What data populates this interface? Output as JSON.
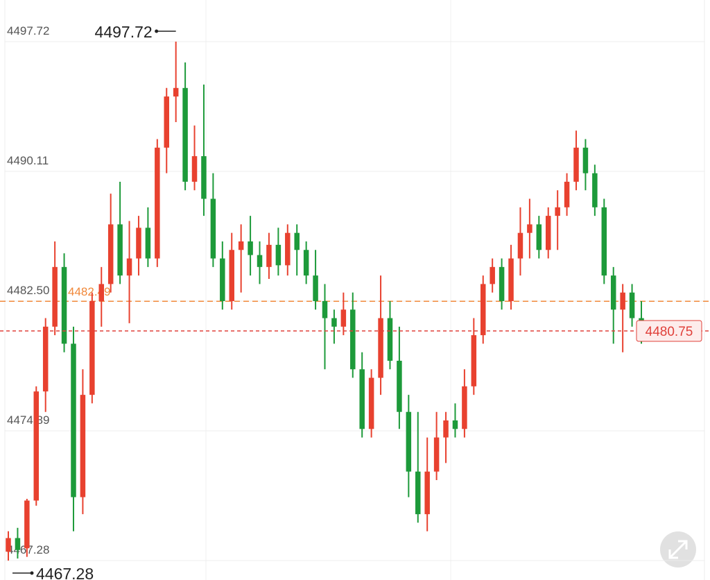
{
  "chart_data": {
    "type": "candlestick",
    "up_color": "#e8412f",
    "down_color": "#1d9a3a",
    "ylim": [
      4466.14,
      4500.16
    ],
    "yticks": [
      4467.28,
      4474.89,
      {
        "value": 4482.5,
        "label": "4482.50"
      },
      4490.11,
      4497.72
    ],
    "grid": true,
    "reference_line": {
      "value": 4482.49,
      "color": "#f0883a"
    },
    "last_price_color": "#e0403a",
    "open": [
      4467.8,
      4468.6,
      4468.0,
      4470.8,
      4477.2,
      4481.0,
      4484.5,
      4480.0,
      4471.0,
      4477.0,
      4482.5,
      4483.5,
      4487.0,
      4484.0,
      4485.0,
      4486.8,
      4485.0,
      4491.5,
      4494.5,
      4495.0,
      4489.5,
      4491.0,
      4488.5,
      4485.0,
      4482.5,
      4485.5,
      4486.0,
      4485.2,
      4484.5,
      4485.8,
      4484.6,
      4486.5,
      4485.5,
      4484.0,
      4482.5,
      4481.5,
      4481.0,
      4482.0,
      4478.5,
      4475.0,
      4478.0,
      4481.5,
      4479.0,
      4476.0,
      4472.5,
      4470.0,
      4472.5,
      4474.5,
      4475.5,
      4475.0,
      4477.5,
      4480.5,
      4483.5,
      4484.5,
      4482.5,
      4485.0,
      4486.5,
      4487.0,
      4485.5,
      4487.5,
      4488.0,
      4489.5,
      4491.5,
      4490.0,
      4488.0,
      4484.0,
      4482.0,
      4483.0,
      4481.5
    ],
    "high": [
      4469.0,
      4469.2,
      4470.9,
      4477.5,
      4481.5,
      4486.0,
      4485.3,
      4481.0,
      4478.5,
      4483.0,
      4484.5,
      4488.8,
      4489.5,
      4487.2,
      4487.5,
      4488.0,
      4492.0,
      4495.0,
      4497.72,
      4496.5,
      4492.8,
      4495.2,
      4490.0,
      4486.0,
      4486.5,
      4487.0,
      4487.5,
      4486.0,
      4486.5,
      4486.8,
      4487.0,
      4487.0,
      4486.0,
      4485.5,
      4483.5,
      4482.0,
      4483.0,
      4483.0,
      4479.5,
      4478.5,
      4484.0,
      4482.5,
      4481.0,
      4477.0,
      4476.0,
      4474.5,
      4476.0,
      4476.0,
      4476.5,
      4478.5,
      4481.5,
      4484.0,
      4485.0,
      4485.0,
      4485.8,
      4488.0,
      4488.5,
      4487.5,
      4488.0,
      4489.0,
      4490.0,
      4492.5,
      4492.0,
      4490.5,
      4488.5,
      4484.5,
      4483.5,
      4483.5,
      4482.5
    ],
    "low": [
      4467.28,
      4467.4,
      4467.5,
      4470.5,
      4476.0,
      4480.5,
      4479.5,
      4469.0,
      4470.0,
      4476.5,
      4481.0,
      4483.0,
      4483.5,
      4481.2,
      4484.0,
      4484.5,
      4484.5,
      4490.0,
      4493.0,
      4489.0,
      4489.0,
      4487.5,
      4484.5,
      4482.0,
      4482.0,
      4483.0,
      4484.0,
      4483.5,
      4483.8,
      4484.0,
      4484.0,
      4484.0,
      4483.5,
      4482.0,
      4478.5,
      4480.0,
      4480.5,
      4478.0,
      4474.5,
      4474.5,
      4477.0,
      4478.5,
      4475.0,
      4471.0,
      4469.5,
      4469.0,
      4472.0,
      4473.0,
      4474.5,
      4474.5,
      4477.0,
      4480.0,
      4483.0,
      4482.0,
      4482.0,
      4484.0,
      4485.0,
      4485.0,
      4485.0,
      4485.5,
      4487.5,
      4489.0,
      4489.0,
      4487.5,
      4483.5,
      4480.0,
      4479.5,
      4481.0,
      4480.0
    ],
    "close": [
      4468.6,
      4467.9,
      4470.8,
      4477.2,
      4481.0,
      4484.5,
      4480.0,
      4471.0,
      4477.0,
      4482.5,
      4483.5,
      4487.0,
      4484.0,
      4485.0,
      4486.8,
      4485.0,
      4491.5,
      4494.5,
      4495.0,
      4489.5,
      4491.0,
      4488.5,
      4485.0,
      4482.5,
      4485.5,
      4486.0,
      4485.2,
      4484.5,
      4485.8,
      4484.6,
      4486.5,
      4485.5,
      4484.0,
      4482.5,
      4481.5,
      4481.0,
      4482.0,
      4478.5,
      4475.0,
      4478.0,
      4481.5,
      4479.0,
      4476.0,
      4472.5,
      4470.0,
      4472.5,
      4474.5,
      4475.5,
      4475.0,
      4477.5,
      4480.5,
      4483.5,
      4484.5,
      4482.5,
      4485.0,
      4486.5,
      4487.0,
      4485.5,
      4487.5,
      4488.0,
      4489.5,
      4491.5,
      4490.0,
      4488.0,
      4484.0,
      4482.0,
      4483.0,
      4481.5,
      4480.75
    ]
  }
}
